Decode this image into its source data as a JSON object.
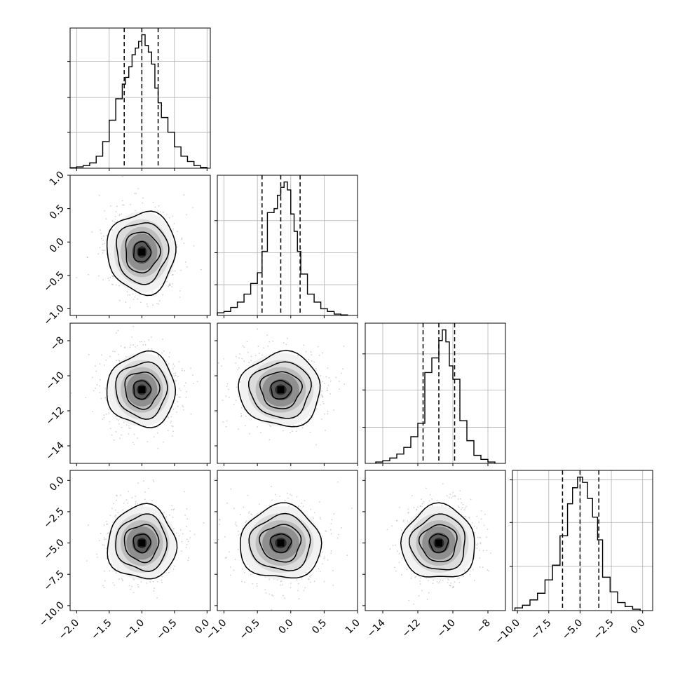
{
  "chart_data": {
    "type": "corner",
    "parameters": 4,
    "colors": {
      "line": "#000000",
      "grid": "#b0b0b0",
      "background": "#ffffff",
      "scatter": "#9a9a9a"
    },
    "grid": true,
    "diagonal_histograms": [
      {
        "param_index": 0,
        "range": [
          -2.1,
          0.05
        ],
        "quantiles": [
          -1.27,
          -1.0,
          -0.75
        ],
        "bin_edges": [
          -2.1,
          -2.0,
          -1.9,
          -1.8,
          -1.7,
          -1.6,
          -1.5,
          -1.4,
          -1.3,
          -1.25,
          -1.2,
          -1.15,
          -1.1,
          -1.05,
          -1.0,
          -0.95,
          -0.9,
          -0.85,
          -0.8,
          -0.75,
          -0.7,
          -0.6,
          -0.5,
          -0.4,
          -0.3,
          -0.2,
          -0.1,
          0.0
        ],
        "counts": [
          0.004,
          0.01,
          0.02,
          0.04,
          0.09,
          0.2,
          0.36,
          0.52,
          0.63,
          0.68,
          0.76,
          0.85,
          0.9,
          0.95,
          1.0,
          0.92,
          0.87,
          0.78,
          0.6,
          0.49,
          0.38,
          0.27,
          0.16,
          0.09,
          0.05,
          0.02,
          0.006
        ],
        "ylim": [
          0,
          1.05
        ],
        "yticks": [
          0.27,
          0.53,
          0.8
        ],
        "xticks": [
          -2.0,
          -1.5,
          -1.0,
          -0.5,
          0.0
        ],
        "xtick_labels": [
          "−2.0",
          "−1.5",
          "−1.0",
          "−0.5",
          "0.0"
        ]
      },
      {
        "param_index": 1,
        "range": [
          -1.1,
          1.0
        ],
        "quantiles": [
          -0.43,
          -0.15,
          0.14
        ],
        "bin_edges": [
          -1.1,
          -1.0,
          -0.9,
          -0.8,
          -0.7,
          -0.6,
          -0.5,
          -0.43,
          -0.35,
          -0.25,
          -0.2,
          -0.15,
          -0.1,
          -0.05,
          0.0,
          0.05,
          0.1,
          0.15,
          0.25,
          0.35,
          0.45,
          0.55,
          0.65,
          0.75,
          0.85
        ],
        "counts": [
          0.02,
          0.03,
          0.06,
          0.1,
          0.16,
          0.24,
          0.32,
          0.48,
          0.77,
          0.8,
          0.9,
          0.96,
          1.0,
          0.94,
          0.76,
          0.63,
          0.48,
          0.31,
          0.16,
          0.1,
          0.05,
          0.03,
          0.01,
          0.004
        ],
        "ylim": [
          0,
          1.05
        ],
        "yticks": [
          0.23,
          0.47,
          0.71
        ],
        "xticks": [
          -1.0,
          -0.5,
          0.0,
          0.5,
          1.0
        ],
        "xtick_labels": [
          "−1.0",
          "−0.5",
          "0.0",
          "0.5",
          "1.0"
        ]
      },
      {
        "param_index": 2,
        "range": [
          -15.0,
          -7.0
        ],
        "quantiles": [
          -11.7,
          -10.8,
          -9.9
        ],
        "bin_edges": [
          -14.4,
          -14.0,
          -13.6,
          -13.2,
          -12.8,
          -12.4,
          -12.0,
          -11.6,
          -11.2,
          -10.8,
          -10.6,
          -10.4,
          -10.2,
          -10.0,
          -9.6,
          -9.2,
          -8.8,
          -8.4,
          -8.0,
          -7.6
        ],
        "counts": [
          0.01,
          0.02,
          0.04,
          0.07,
          0.12,
          0.2,
          0.3,
          0.68,
          0.79,
          0.92,
          1.0,
          0.91,
          0.73,
          0.63,
          0.32,
          0.17,
          0.06,
          0.03,
          0.01
        ],
        "ylim": [
          0,
          1.05
        ],
        "yticks": [
          0.27,
          0.55,
          0.82
        ],
        "xticks": [
          -14,
          -12,
          -10,
          -8
        ],
        "xtick_labels": [
          "−14",
          "−12",
          "−10",
          "−8"
        ]
      },
      {
        "param_index": 3,
        "range": [
          -10.4,
          0.8
        ],
        "quantiles": [
          -6.4,
          -5.0,
          -3.5
        ],
        "bin_edges": [
          -10.2,
          -9.6,
          -9.0,
          -8.4,
          -7.8,
          -7.2,
          -6.6,
          -6.0,
          -5.6,
          -5.2,
          -4.8,
          -4.4,
          -4.0,
          -3.6,
          -3.2,
          -2.6,
          -2.0,
          -1.4,
          -0.8,
          -0.2
        ],
        "counts": [
          0.02,
          0.04,
          0.08,
          0.13,
          0.23,
          0.34,
          0.56,
          0.8,
          0.92,
          1.0,
          0.96,
          0.84,
          0.7,
          0.53,
          0.25,
          0.14,
          0.06,
          0.03,
          0.01
        ],
        "ylim": [
          0,
          1.05
        ],
        "yticks": [
          0.33,
          0.66,
          0.98
        ],
        "xticks": [
          -10.0,
          -7.5,
          -5.0,
          -2.5,
          0.0
        ],
        "xtick_labels": [
          "−10.0",
          "−7.5",
          "−5.0",
          "−2.5",
          "0.0"
        ]
      }
    ],
    "axis_ranges": [
      [
        -2.1,
        0.05
      ],
      [
        -1.1,
        1.0
      ],
      [
        -15.0,
        -7.0
      ],
      [
        -10.4,
        0.8
      ]
    ],
    "centers": [
      -1.0,
      -0.15,
      -10.8,
      -5.0
    ],
    "sigmas": [
      0.25,
      0.29,
      1.0,
      1.4
    ],
    "ytick_values": [
      null,
      [
        -1.0,
        -0.5,
        0.0,
        0.5,
        1.0
      ],
      [
        -14,
        -12,
        -10,
        -8
      ],
      [
        -10.0,
        -7.5,
        -5.0,
        -2.5,
        0.0
      ]
    ],
    "ytick_labels": [
      null,
      [
        "−1.0",
        "−0.5",
        "0.0",
        "0.5",
        "1.0"
      ],
      [
        "−14",
        "−12",
        "−10",
        "−8"
      ],
      [
        "−10.0",
        "−7.5",
        "−5.0",
        "−2.5",
        "0.0"
      ]
    ],
    "contour_levels_sigma": [
      0.5,
      1.0,
      1.5,
      2.0
    ],
    "scatter_points_per_panel": 700
  }
}
